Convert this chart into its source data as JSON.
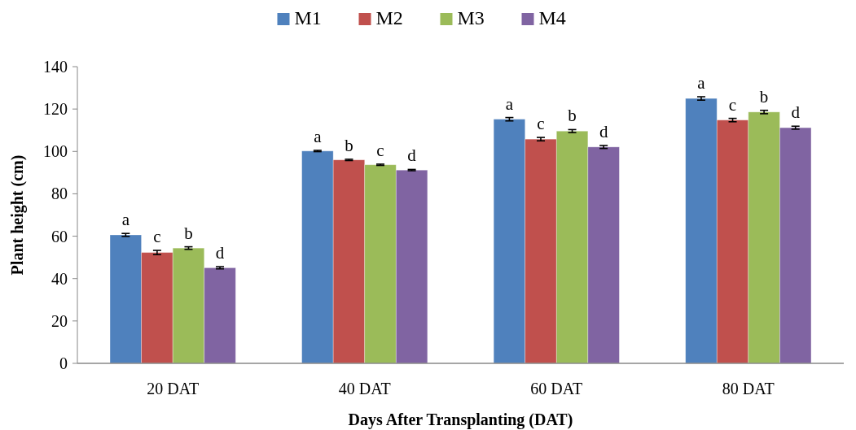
{
  "chart_data": {
    "type": "bar",
    "xlabel": "Days After Transplanting (DAT)",
    "ylabel": "Plant height (cm)",
    "categories": [
      "20 DAT",
      "40 DAT",
      "60 DAT",
      "80 DAT"
    ],
    "ylim": [
      0,
      140
    ],
    "yticks": [
      0,
      20,
      40,
      60,
      80,
      100,
      120,
      140
    ],
    "grid": false,
    "legend": "top",
    "series": [
      {
        "name": "M1",
        "color": "#4f81bd",
        "values": [
          60.6,
          100.2,
          115.2,
          125.0
        ],
        "errors": [
          0.7,
          0.3,
          0.8,
          0.8
        ],
        "value_labels": [
          "a",
          "a",
          "a",
          "a"
        ]
      },
      {
        "name": "M2",
        "color": "#c0504d",
        "values": [
          52.3,
          96.0,
          105.8,
          114.8
        ],
        "errors": [
          1.0,
          0.3,
          0.8,
          0.8
        ],
        "value_labels": [
          "c",
          "b",
          "c",
          "c"
        ]
      },
      {
        "name": "M3",
        "color": "#9bbb59",
        "values": [
          54.4,
          93.7,
          109.6,
          118.6
        ],
        "errors": [
          0.6,
          0.3,
          0.7,
          0.8
        ],
        "value_labels": [
          "b",
          "c",
          "b",
          "b"
        ]
      },
      {
        "name": "M4",
        "color": "#8064a2",
        "values": [
          45.1,
          91.2,
          102.1,
          111.2
        ],
        "errors": [
          0.5,
          0.3,
          0.7,
          0.7
        ],
        "value_labels": [
          "d",
          "d",
          "d",
          "d"
        ]
      }
    ]
  }
}
